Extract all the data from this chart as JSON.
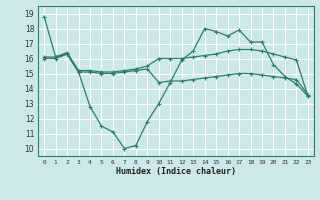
{
  "xlabel": "Humidex (Indice chaleur)",
  "bg_color": "#cce8e8",
  "line_color": "#2e7d6e",
  "grid_color": "#b0d8d8",
  "xlim": [
    -0.5,
    23.5
  ],
  "ylim": [
    9.5,
    19.5
  ],
  "xticks": [
    0,
    1,
    2,
    3,
    4,
    5,
    6,
    7,
    8,
    9,
    10,
    11,
    12,
    13,
    14,
    15,
    16,
    17,
    18,
    19,
    20,
    21,
    22,
    23
  ],
  "yticks": [
    10,
    11,
    12,
    13,
    14,
    15,
    16,
    17,
    18,
    19
  ],
  "series": [
    {
      "x": [
        0,
        1,
        2,
        3,
        4,
        5,
        6,
        7,
        8,
        9,
        10,
        11,
        12,
        13,
        14,
        15,
        16,
        17,
        18,
        19,
        20,
        21,
        22,
        23
      ],
      "y": [
        18.8,
        16.1,
        16.3,
        15.1,
        12.8,
        11.5,
        11.1,
        10.0,
        10.2,
        11.8,
        13.0,
        14.4,
        15.9,
        16.5,
        18.0,
        17.8,
        17.5,
        17.9,
        17.1,
        17.1,
        15.6,
        14.8,
        14.3,
        13.5
      ]
    },
    {
      "x": [
        0,
        1,
        2,
        3,
        4,
        5,
        6,
        7,
        8,
        9,
        10,
        11,
        12,
        13,
        14,
        15,
        16,
        17,
        18,
        19,
        20,
        21,
        22,
        23
      ],
      "y": [
        16.1,
        16.1,
        16.4,
        15.2,
        15.2,
        15.1,
        15.1,
        15.2,
        15.3,
        15.5,
        16.0,
        16.0,
        16.0,
        16.1,
        16.2,
        16.3,
        16.5,
        16.6,
        16.6,
        16.5,
        16.3,
        16.1,
        15.9,
        13.5
      ]
    },
    {
      "x": [
        0,
        1,
        2,
        3,
        4,
        5,
        6,
        7,
        8,
        9,
        10,
        11,
        12,
        13,
        14,
        15,
        16,
        17,
        18,
        19,
        20,
        21,
        22,
        23
      ],
      "y": [
        16.0,
        16.0,
        16.3,
        15.1,
        15.1,
        15.0,
        15.0,
        15.1,
        15.2,
        15.3,
        14.4,
        14.5,
        14.5,
        14.6,
        14.7,
        14.8,
        14.9,
        15.0,
        15.0,
        14.9,
        14.8,
        14.7,
        14.6,
        13.6
      ]
    }
  ]
}
